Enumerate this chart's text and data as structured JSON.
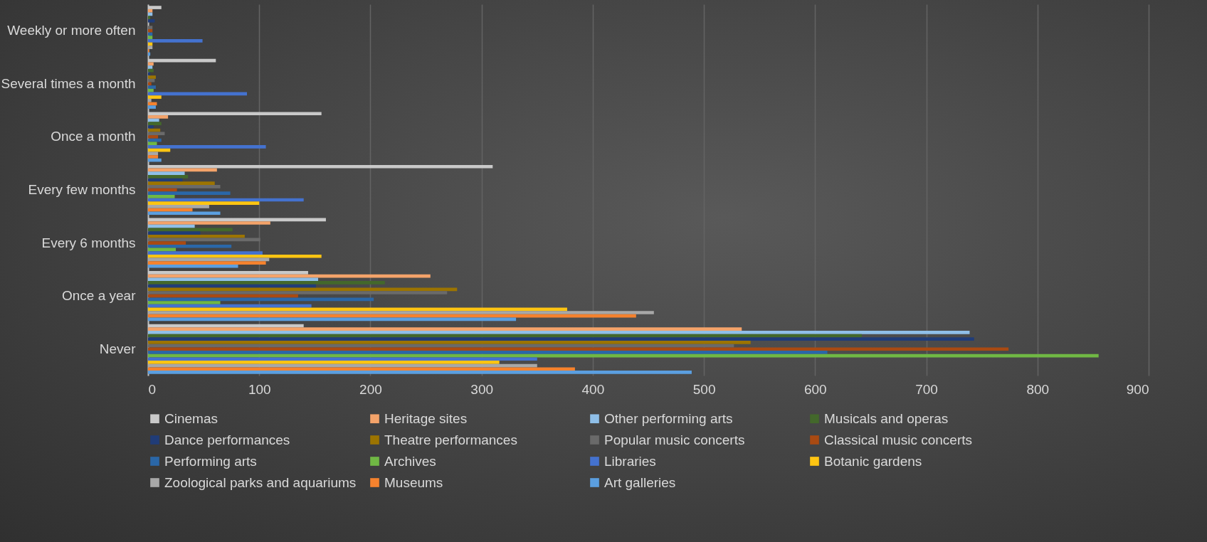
{
  "chart_data": {
    "type": "bar",
    "orientation": "horizontal",
    "categories": [
      "Weekly or more often",
      "Several times a month",
      "Once a month",
      "Every few months",
      "Every 6 months",
      "Once a year",
      "Never"
    ],
    "series": [
      {
        "name": "Cinemas",
        "color": "#c9c9c9",
        "values": [
          12,
          61,
          156,
          310,
          160,
          144,
          140
        ]
      },
      {
        "name": "Heritage sites",
        "color": "#f4a36a",
        "values": [
          4,
          5,
          18,
          62,
          110,
          254,
          534
        ]
      },
      {
        "name": "Other performing arts",
        "color": "#8fbfe8",
        "values": [
          4,
          4,
          10,
          33,
          42,
          153,
          739
        ]
      },
      {
        "name": "Musicals and operas",
        "color": "#43682b",
        "values": [
          2,
          5,
          12,
          36,
          76,
          213,
          642
        ]
      },
      {
        "name": "Dance performances",
        "color": "#203c78",
        "values": [
          6,
          2,
          5,
          31,
          47,
          151,
          743
        ]
      },
      {
        "name": "Theatre performances",
        "color": "#9c7400",
        "values": [
          null,
          7,
          11,
          60,
          87,
          278,
          542
        ]
      },
      {
        "name": "Popular music concerts",
        "color": "#6a6a6a",
        "values": [
          4,
          6,
          15,
          65,
          101,
          269,
          527
        ]
      },
      {
        "name": "Classical music concerts",
        "color": "#a94a12",
        "values": [
          4,
          3,
          9,
          26,
          34,
          135,
          774
        ]
      },
      {
        "name": "Performing arts",
        "color": "#2a67a8",
        "values": [
          4,
          7,
          12,
          74,
          75,
          203,
          611
        ]
      },
      {
        "name": "Archives",
        "color": "#70b844",
        "values": [
          4,
          5,
          8,
          24,
          25,
          65,
          855
        ]
      },
      {
        "name": "Libraries",
        "color": "#4472cf",
        "values": [
          49,
          89,
          106,
          140,
          103,
          147,
          350
        ]
      },
      {
        "name": "Botanic gardens",
        "color": "#ffc512",
        "values": [
          4,
          12,
          20,
          100,
          156,
          377,
          316
        ]
      },
      {
        "name": "Zoological parks and aquariums",
        "color": "#a8a8a8",
        "values": [
          4,
          3,
          9,
          55,
          109,
          455,
          350
        ]
      },
      {
        "name": "Museums",
        "color": "#f5822e",
        "values": [
          1,
          8,
          9,
          40,
          106,
          439,
          384
        ]
      },
      {
        "name": "Art galleries",
        "color": "#5b9fe0",
        "values": [
          2,
          7,
          12,
          65,
          81,
          331,
          489
        ]
      }
    ],
    "xlim": [
      0,
      900
    ],
    "xticks": [
      0,
      100,
      200,
      300,
      400,
      500,
      600,
      700,
      800,
      900
    ],
    "grid": "x",
    "legend": "bottom"
  }
}
